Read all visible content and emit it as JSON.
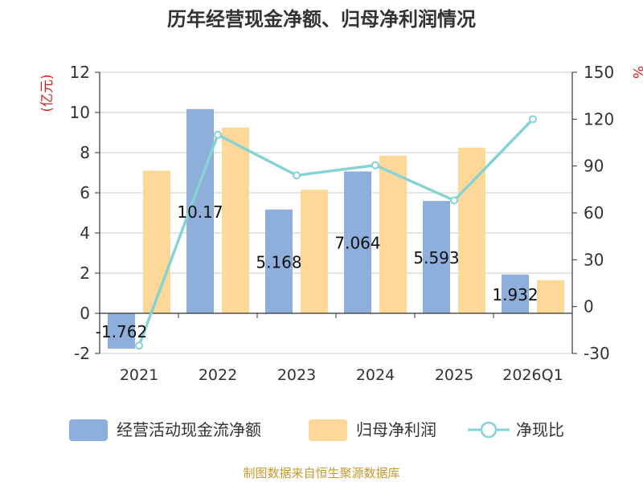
{
  "chart_data": {
    "type": "bar",
    "title": "历年经营现金净额、归母净利润情况",
    "categories": [
      "2021",
      "2022",
      "2023",
      "2024",
      "2025",
      "2026Q1"
    ],
    "series": [
      {
        "name": "经营活动现金流净额",
        "kind": "bar",
        "axis": "left",
        "color": "#8eaedb",
        "values": [
          -1.762,
          10.17,
          5.168,
          7.064,
          5.593,
          1.932
        ],
        "labels": [
          "-1.762",
          "10.17",
          "5.168",
          "7.064",
          "5.593",
          "1.932"
        ]
      },
      {
        "name": "归母净利润",
        "kind": "bar",
        "axis": "left",
        "color": "#fdd899",
        "values": [
          7.1,
          9.25,
          6.15,
          7.85,
          8.25,
          1.65
        ]
      },
      {
        "name": "净现比",
        "kind": "line",
        "axis": "right",
        "color": "#86d3d6",
        "values": [
          -25,
          110,
          84,
          90.5,
          68,
          120
        ]
      }
    ],
    "left_axis": {
      "unit": "(亿元)",
      "ylim": [
        -2,
        12
      ],
      "ticks": [
        -2,
        0,
        2,
        4,
        6,
        8,
        10,
        12
      ]
    },
    "right_axis": {
      "unit": "%",
      "ylim": [
        -30,
        150
      ],
      "ticks": [
        -30,
        0,
        30,
        60,
        90,
        120,
        150
      ]
    },
    "grid": true,
    "legend_position": "bottom"
  },
  "source": "制图数据来自恒生聚源数据库"
}
